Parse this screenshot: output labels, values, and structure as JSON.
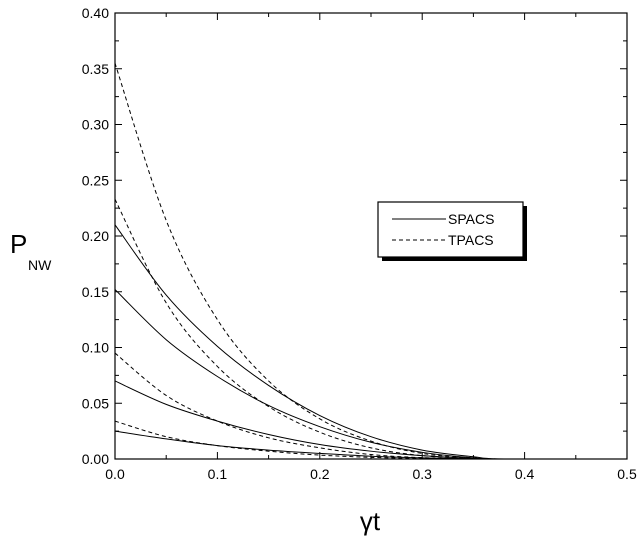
{
  "chart_data": {
    "type": "line",
    "xlabel": "γt",
    "ylabel": "P",
    "ylabel_sub": "NW",
    "xlim": [
      0.0,
      0.5
    ],
    "ylim": [
      0.0,
      0.4
    ],
    "x_ticks": [
      "0.0",
      "0.1",
      "0.2",
      "0.3",
      "0.4",
      "0.5"
    ],
    "y_ticks": [
      "0.00",
      "0.05",
      "0.10",
      "0.15",
      "0.20",
      "0.25",
      "0.30",
      "0.35",
      "0.40"
    ],
    "legend": {
      "placement": "center-right",
      "entries": [
        {
          "label": "SPACS",
          "style": "solid"
        },
        {
          "label": "TPACS",
          "style": "dashed"
        }
      ]
    },
    "series": [
      {
        "group": "SPACS",
        "style": "solid",
        "x": [
          0.0,
          0.05,
          0.1,
          0.15,
          0.2,
          0.25,
          0.3,
          0.35,
          0.38,
          0.5
        ],
        "y": [
          0.21,
          0.147,
          0.101,
          0.066,
          0.039,
          0.02,
          0.008,
          0.002,
          0.0,
          0.0
        ]
      },
      {
        "group": "SPACS",
        "style": "solid",
        "x": [
          0.0,
          0.05,
          0.1,
          0.15,
          0.2,
          0.25,
          0.3,
          0.35,
          0.38,
          0.5
        ],
        "y": [
          0.152,
          0.107,
          0.074,
          0.048,
          0.029,
          0.015,
          0.006,
          0.001,
          0.0,
          0.0
        ]
      },
      {
        "group": "SPACS",
        "style": "solid",
        "x": [
          0.0,
          0.05,
          0.1,
          0.15,
          0.2,
          0.25,
          0.3,
          0.35,
          0.38,
          0.5
        ],
        "y": [
          0.07,
          0.049,
          0.034,
          0.022,
          0.013,
          0.007,
          0.003,
          0.0005,
          0.0,
          0.0
        ]
      },
      {
        "group": "SPACS",
        "style": "solid",
        "x": [
          0.0,
          0.05,
          0.1,
          0.15,
          0.2,
          0.25,
          0.3,
          0.35,
          0.38,
          0.5
        ],
        "y": [
          0.025,
          0.018,
          0.012,
          0.008,
          0.005,
          0.0025,
          0.001,
          0.0002,
          0.0,
          0.0
        ]
      },
      {
        "group": "TPACS",
        "style": "dashed",
        "x": [
          0.0,
          0.05,
          0.1,
          0.15,
          0.2,
          0.25,
          0.3,
          0.35,
          0.38,
          0.5
        ],
        "y": [
          0.355,
          0.214,
          0.125,
          0.07,
          0.036,
          0.016,
          0.005,
          0.001,
          0.0,
          0.0
        ]
      },
      {
        "group": "TPACS",
        "style": "dashed",
        "x": [
          0.0,
          0.05,
          0.1,
          0.15,
          0.2,
          0.25,
          0.3,
          0.35,
          0.38,
          0.5
        ],
        "y": [
          0.233,
          0.14,
          0.083,
          0.047,
          0.024,
          0.01,
          0.003,
          0.0005,
          0.0,
          0.0
        ]
      },
      {
        "group": "TPACS",
        "style": "dashed",
        "x": [
          0.0,
          0.05,
          0.1,
          0.15,
          0.2,
          0.25,
          0.3,
          0.35,
          0.38,
          0.5
        ],
        "y": [
          0.095,
          0.057,
          0.034,
          0.019,
          0.01,
          0.004,
          0.0012,
          0.0002,
          0.0,
          0.0
        ]
      },
      {
        "group": "TPACS",
        "style": "dashed",
        "x": [
          0.0,
          0.05,
          0.1,
          0.15,
          0.2,
          0.25,
          0.3,
          0.35,
          0.38,
          0.5
        ],
        "y": [
          0.034,
          0.02,
          0.012,
          0.007,
          0.0035,
          0.0015,
          0.0004,
          0.0001,
          0.0,
          0.0
        ]
      }
    ]
  }
}
